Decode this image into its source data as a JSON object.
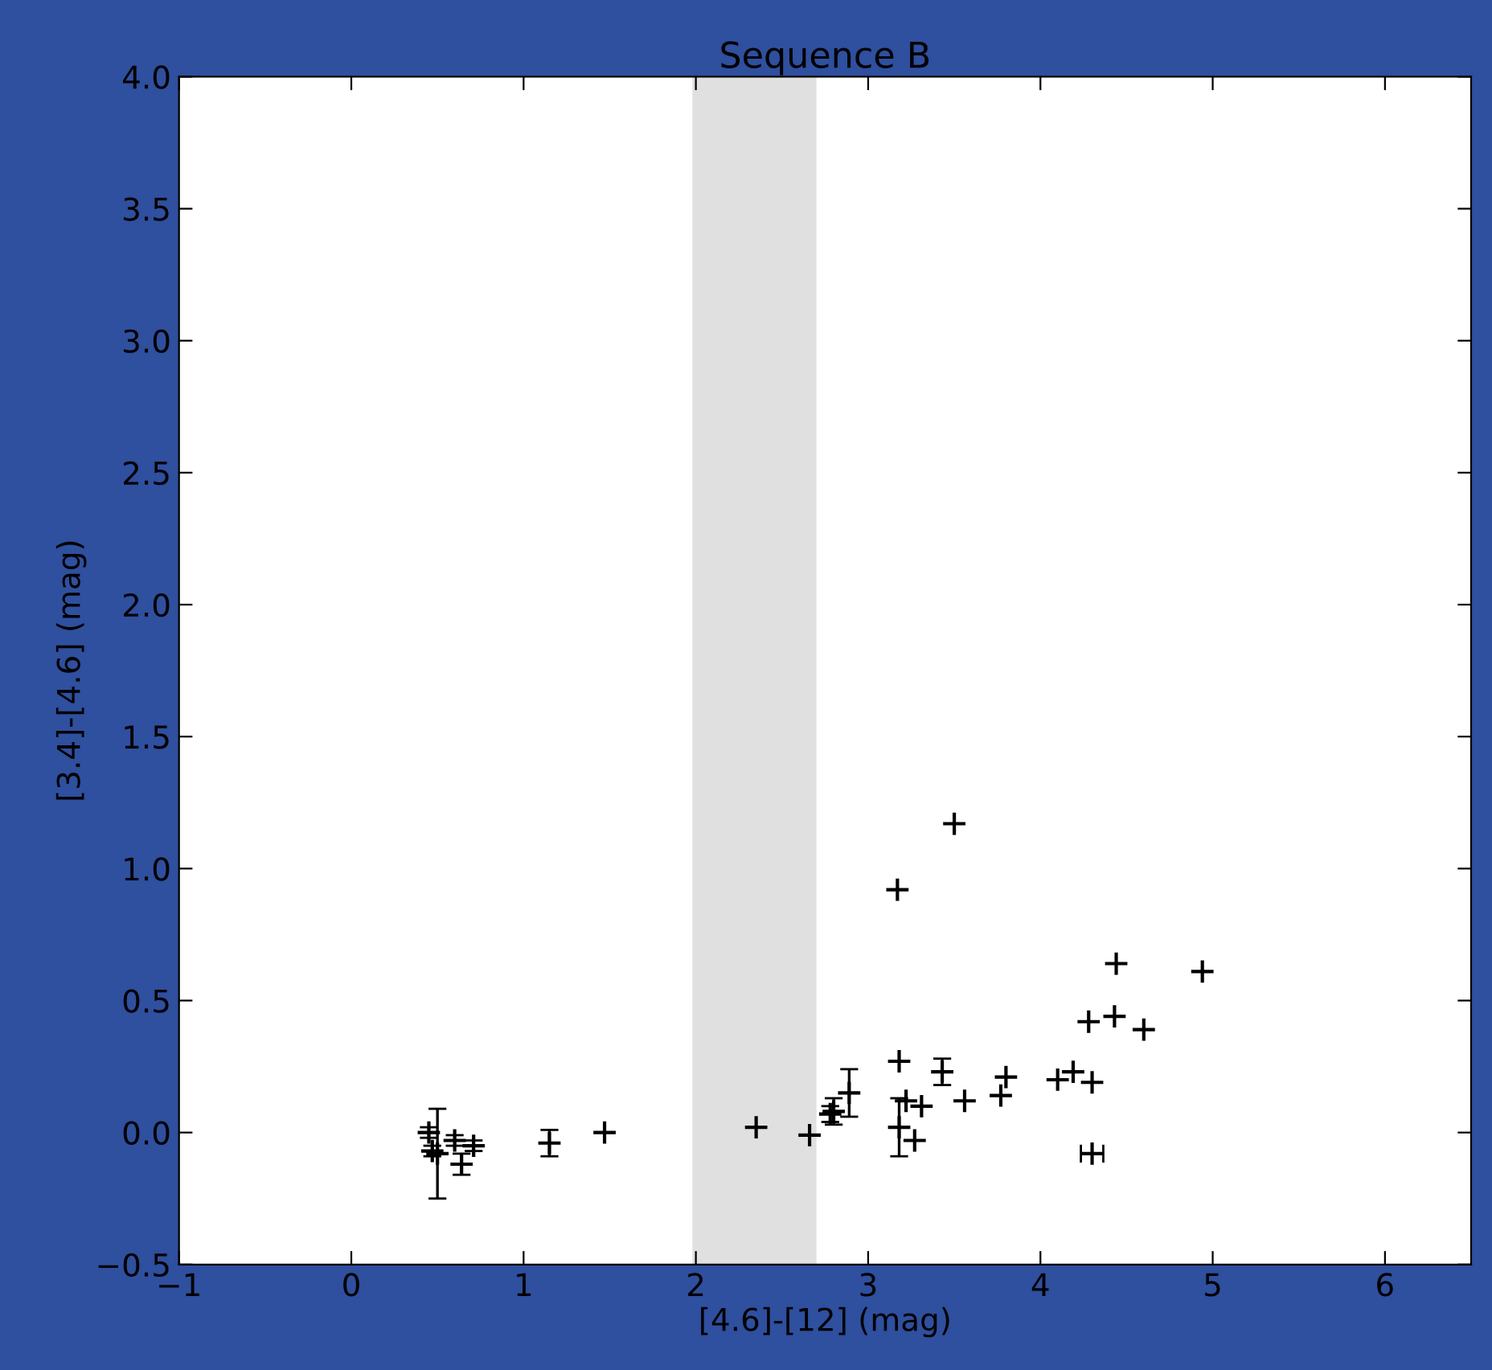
{
  "chart_data": {
    "type": "scatter",
    "title": "Sequence B",
    "xlabel": "[4.6]-[12] (mag)",
    "ylabel": "[3.4]-[4.6] (mag)",
    "x": [
      0.45,
      0.47,
      0.5,
      0.6,
      0.64,
      0.71,
      1.15,
      1.47,
      2.35,
      2.66,
      2.78,
      2.8,
      2.89,
      3.17,
      3.5,
      3.18,
      3.18,
      3.22,
      3.31,
      3.27,
      3.43,
      3.56,
      3.77,
      3.8,
      4.1,
      4.19,
      4.3,
      4.28,
      4.43,
      4.44,
      4.6,
      4.94,
      4.3
    ],
    "values": [
      0.0,
      -0.07,
      -0.08,
      -0.03,
      -0.12,
      -0.05,
      -0.04,
      0.0,
      0.02,
      -0.01,
      0.07,
      0.08,
      0.15,
      0.92,
      1.17,
      0.27,
      0.02,
      0.12,
      0.1,
      -0.03,
      0.23,
      0.12,
      0.14,
      0.21,
      0.2,
      0.23,
      0.19,
      0.42,
      0.44,
      0.64,
      0.39,
      0.61,
      -0.08
    ],
    "errors": [
      0.02,
      0.02,
      0.17,
      0.02,
      0.04,
      0.02,
      0.05,
      null,
      null,
      null,
      0.03,
      0.05,
      0.09,
      null,
      null,
      null,
      0.11,
      null,
      null,
      null,
      0.05,
      null,
      null,
      null,
      null,
      null,
      null,
      null,
      null,
      null,
      null,
      null,
      null
    ],
    "xerrors": [
      null,
      null,
      null,
      null,
      null,
      null,
      null,
      null,
      null,
      null,
      null,
      null,
      null,
      null,
      null,
      null,
      null,
      null,
      null,
      null,
      null,
      null,
      null,
      null,
      null,
      null,
      null,
      null,
      null,
      null,
      null,
      null,
      0.065
    ],
    "color": "#000000",
    "marker": "cross",
    "bands": [
      {
        "axis": "x",
        "from": 1.98,
        "to": 2.7,
        "color": "#e0e0e0"
      }
    ],
    "xlim": [
      -1,
      6.5
    ],
    "xticks": [
      {
        "value": -1,
        "label": "−1"
      },
      0,
      1,
      2,
      3,
      4,
      5,
      6
    ],
    "ylim": [
      -0.5,
      4.0
    ],
    "yticks": [
      {
        "value": -0.5,
        "label": "−0.5"
      },
      {
        "value": 0,
        "label": "0.0"
      },
      0.5,
      {
        "value": 1,
        "label": "1.0"
      },
      1.5,
      {
        "value": 2,
        "label": "2.0"
      },
      2.5,
      {
        "value": 3,
        "label": "3.0"
      },
      3.5,
      {
        "value": 4,
        "label": "4.0"
      }
    ],
    "grid": false
  }
}
